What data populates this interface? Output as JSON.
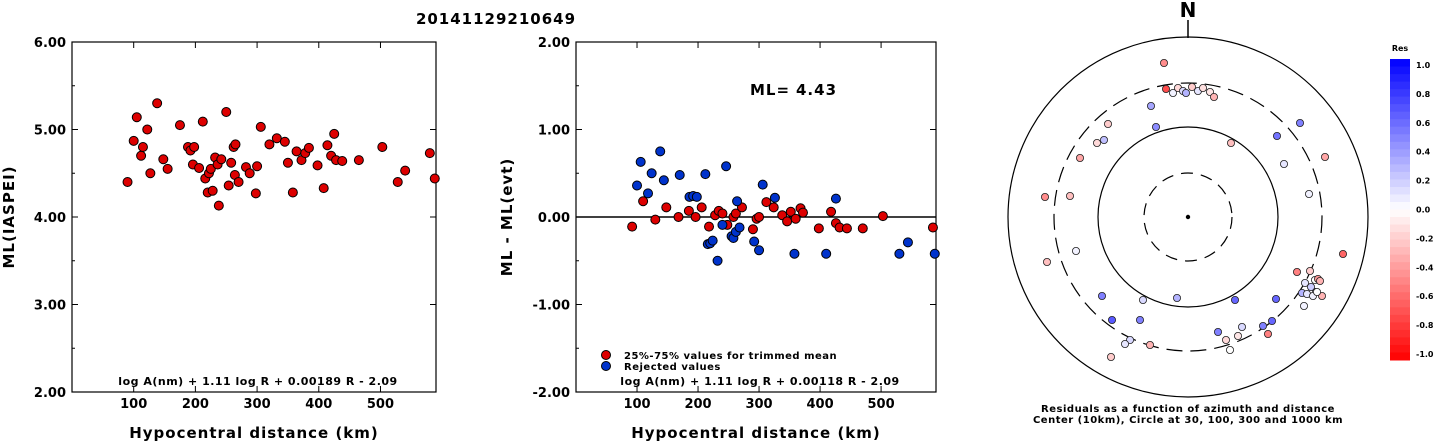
{
  "title": "20141129210649",
  "chart_data": [
    {
      "type": "scatter",
      "ylabel": "ML(IASPEI)",
      "xlabel": "Hypocentral distance (km)",
      "xlim": [
        0,
        590
      ],
      "ylim": [
        2.0,
        6.0
      ],
      "xticks": [
        "100",
        "200",
        "300",
        "400",
        "500"
      ],
      "yticks": [
        "2.00",
        "3.00",
        "4.00",
        "5.00",
        "6.00"
      ],
      "annotation": "log A(nm) + 1.11 log R + 0.00189 R - 2.09",
      "color": "#dd0000",
      "points": [
        [
          90,
          4.4
        ],
        [
          100,
          4.87
        ],
        [
          105,
          5.14
        ],
        [
          112,
          4.7
        ],
        [
          115,
          4.8
        ],
        [
          122,
          5.0
        ],
        [
          127,
          4.5
        ],
        [
          138,
          5.3
        ],
        [
          148,
          4.66
        ],
        [
          155,
          4.55
        ],
        [
          175,
          5.05
        ],
        [
          188,
          4.8
        ],
        [
          192,
          4.76
        ],
        [
          196,
          4.6
        ],
        [
          198,
          4.8
        ],
        [
          206,
          4.56
        ],
        [
          212,
          5.09
        ],
        [
          216,
          4.44
        ],
        [
          220,
          4.28
        ],
        [
          222,
          4.5
        ],
        [
          225,
          4.55
        ],
        [
          228,
          4.3
        ],
        [
          232,
          4.68
        ],
        [
          236,
          4.6
        ],
        [
          238,
          4.13
        ],
        [
          242,
          4.66
        ],
        [
          250,
          5.2
        ],
        [
          254,
          4.36
        ],
        [
          258,
          4.62
        ],
        [
          262,
          4.8
        ],
        [
          264,
          4.48
        ],
        [
          265,
          4.83
        ],
        [
          270,
          4.4
        ],
        [
          282,
          4.57
        ],
        [
          288,
          4.5
        ],
        [
          298,
          4.27
        ],
        [
          300,
          4.58
        ],
        [
          306,
          5.03
        ],
        [
          320,
          4.83
        ],
        [
          332,
          4.9
        ],
        [
          345,
          4.86
        ],
        [
          350,
          4.62
        ],
        [
          358,
          4.28
        ],
        [
          364,
          4.75
        ],
        [
          372,
          4.65
        ],
        [
          378,
          4.73
        ],
        [
          384,
          4.79
        ],
        [
          398,
          4.59
        ],
        [
          408,
          4.33
        ],
        [
          414,
          4.82
        ],
        [
          420,
          4.7
        ],
        [
          425,
          4.95
        ],
        [
          428,
          4.65
        ],
        [
          438,
          4.64
        ],
        [
          465,
          4.65
        ],
        [
          503,
          4.8
        ],
        [
          528,
          4.4
        ],
        [
          540,
          4.53
        ],
        [
          580,
          4.73
        ],
        [
          588,
          4.44
        ]
      ]
    },
    {
      "type": "scatter",
      "ylabel": "ML - ML(evt)",
      "xlabel": "Hypocentral distance (km)",
      "xlim": [
        0,
        590
      ],
      "ylim": [
        -2.0,
        2.0
      ],
      "xticks": [
        "100",
        "200",
        "300",
        "400",
        "500"
      ],
      "yticks": [
        "-2.00",
        "-1.00",
        "0.00",
        "1.00",
        "2.00"
      ],
      "ml_label": "ML=",
      "ml_value": "4.43",
      "legend": [
        "25%-75% values for trimmed mean",
        "Rejected values"
      ],
      "annotation": "log A(nm) + 1.11 log R + 0.00118 R - 2.09",
      "series": [
        {
          "name": "25%-75% values for trimmed mean",
          "color": "#dd0000",
          "points": [
            [
              92,
              -0.11
            ],
            [
              110,
              0.18
            ],
            [
              130,
              -0.03
            ],
            [
              148,
              0.11
            ],
            [
              168,
              0.0
            ],
            [
              185,
              0.07
            ],
            [
              196,
              0.0
            ],
            [
              206,
              0.11
            ],
            [
              218,
              -0.11
            ],
            [
              228,
              0.02
            ],
            [
              234,
              0.07
            ],
            [
              240,
              0.04
            ],
            [
              248,
              -0.09
            ],
            [
              258,
              0.0
            ],
            [
              262,
              0.04
            ],
            [
              272,
              0.11
            ],
            [
              290,
              -0.14
            ],
            [
              296,
              -0.02
            ],
            [
              300,
              0.0
            ],
            [
              312,
              0.17
            ],
            [
              324,
              0.11
            ],
            [
              338,
              0.02
            ],
            [
              346,
              -0.05
            ],
            [
              352,
              0.06
            ],
            [
              360,
              -0.02
            ],
            [
              368,
              0.1
            ],
            [
              372,
              0.05
            ],
            [
              398,
              -0.13
            ],
            [
              418,
              0.06
            ],
            [
              426,
              -0.07
            ],
            [
              432,
              -0.12
            ],
            [
              444,
              -0.13
            ],
            [
              470,
              -0.13
            ],
            [
              503,
              0.01
            ],
            [
              585,
              -0.12
            ]
          ]
        },
        {
          "name": "Rejected values",
          "color": "#0033cc",
          "points": [
            [
              100,
              0.36
            ],
            [
              106,
              0.63
            ],
            [
              118,
              0.27
            ],
            [
              124,
              0.5
            ],
            [
              138,
              0.75
            ],
            [
              144,
              0.42
            ],
            [
              170,
              0.48
            ],
            [
              186,
              0.23
            ],
            [
              192,
              0.24
            ],
            [
              198,
              0.23
            ],
            [
              212,
              0.49
            ],
            [
              216,
              -0.31
            ],
            [
              220,
              -0.3
            ],
            [
              224,
              -0.27
            ],
            [
              232,
              -0.5
            ],
            [
              240,
              -0.09
            ],
            [
              246,
              0.58
            ],
            [
              255,
              -0.22
            ],
            [
              258,
              -0.24
            ],
            [
              262,
              -0.17
            ],
            [
              264,
              0.18
            ],
            [
              268,
              -0.12
            ],
            [
              292,
              -0.28
            ],
            [
              300,
              -0.38
            ],
            [
              306,
              0.37
            ],
            [
              326,
              0.22
            ],
            [
              358,
              -0.42
            ],
            [
              410,
              -0.42
            ],
            [
              426,
              0.21
            ],
            [
              530,
              -0.42
            ],
            [
              544,
              -0.29
            ],
            [
              588,
              -0.42
            ]
          ]
        }
      ]
    },
    {
      "type": "polar-scatter",
      "north_label": "N",
      "caption_line1": "Residuals as a function of azimuth and distance",
      "caption_line2": "Center (10km), Circle at 30, 100, 300 and 1000 km",
      "colorbar_title": "Res",
      "colorbar_ticks": [
        "1.0",
        "0.8",
        "0.6",
        "0.4",
        "0.2",
        "0.0",
        "-0.2",
        "-0.4",
        "-0.6",
        "-0.8",
        "-1.0"
      ],
      "points": [
        [
          1164,
          63,
          -0.45
        ],
        [
          1166,
          89,
          -0.7
        ],
        [
          1173,
          93,
          0.05
        ],
        [
          1178,
          88,
          -0.15
        ],
        [
          1183,
          91,
          0.15
        ],
        [
          1186,
          93,
          0.3
        ],
        [
          1192,
          87,
          -0.2
        ],
        [
          1198,
          91,
          0.1
        ],
        [
          1203,
          88,
          -0.12
        ],
        [
          1210,
          92,
          -0.1
        ],
        [
          1214,
          97,
          -0.3
        ],
        [
          1151,
          106,
          0.35
        ],
        [
          1108,
          124,
          -0.2
        ],
        [
          1156,
          127,
          0.45
        ],
        [
          1104,
          140,
          0.25
        ],
        [
          1097,
          143,
          -0.15
        ],
        [
          1080,
          158,
          -0.35
        ],
        [
          1231,
          143,
          -0.25
        ],
        [
          1277,
          136,
          0.55
        ],
        [
          1300,
          123,
          0.5
        ],
        [
          1284,
          164,
          0.1
        ],
        [
          1325,
          157,
          -0.35
        ],
        [
          1309,
          194,
          0.05
        ],
        [
          1045,
          197,
          -0.45
        ],
        [
          1070,
          196,
          -0.25
        ],
        [
          1047,
          262,
          -0.25
        ],
        [
          1076,
          251,
          0.05
        ],
        [
          1343,
          254,
          -0.6
        ],
        [
          1297,
          272,
          -0.5
        ],
        [
          1310,
          271,
          -0.2
        ],
        [
          1315,
          280,
          0.0
        ],
        [
          1318,
          279,
          -0.4
        ],
        [
          1320,
          281,
          -0.3
        ],
        [
          1305,
          283,
          0.1
        ],
        [
          1311,
          287,
          0.2
        ],
        [
          1316,
          292,
          0.2
        ],
        [
          1322,
          296,
          -0.3
        ],
        [
          1302,
          293,
          0.3
        ],
        [
          1307,
          294,
          0.1
        ],
        [
          1313,
          296,
          0.05
        ],
        [
          1317,
          292,
          0.0
        ],
        [
          1304,
          306,
          0.05
        ],
        [
          1276,
          299,
          0.6
        ],
        [
          1235,
          300,
          0.6
        ],
        [
          1102,
          296,
          0.5
        ],
        [
          1143,
          300,
          0.15
        ],
        [
          1177,
          298,
          0.3
        ],
        [
          1140,
          320,
          0.5
        ],
        [
          1218,
          332,
          0.5
        ],
        [
          1242,
          327,
          0.15
        ],
        [
          1263,
          326,
          0.5
        ],
        [
          1272,
          321,
          0.6
        ],
        [
          1268,
          334,
          -0.5
        ],
        [
          1238,
          336,
          -0.1
        ],
        [
          1226,
          340,
          -0.15
        ],
        [
          1230,
          350,
          0.0
        ],
        [
          1112,
          320,
          0.65
        ],
        [
          1130,
          340,
          0.15
        ],
        [
          1125,
          344,
          0.1
        ],
        [
          1111,
          357,
          -0.2
        ],
        [
          1150,
          345,
          -0.3
        ]
      ]
    }
  ]
}
